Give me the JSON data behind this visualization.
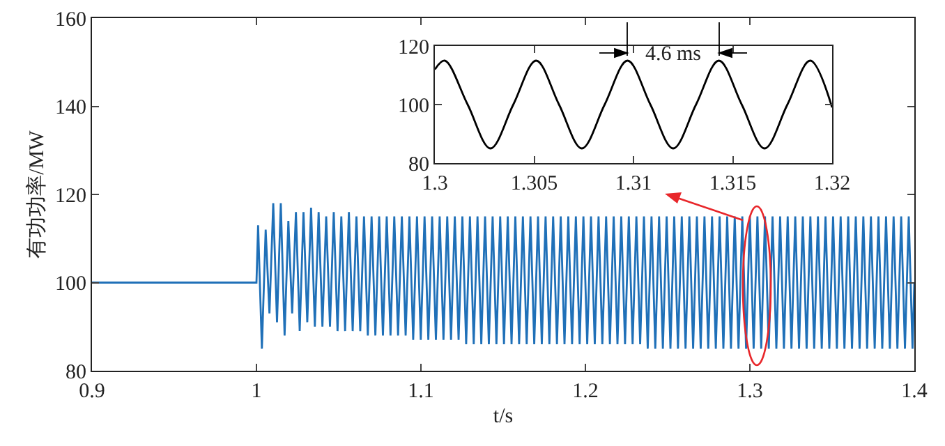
{
  "chart_data": [
    {
      "type": "line",
      "xlabel": "t/s",
      "ylabel": "有功功率/MW",
      "color": "#1f70b8",
      "xlim": [
        0.9,
        1.4
      ],
      "xticks": [
        0.9,
        1,
        1.1,
        1.2,
        1.3,
        1.4
      ],
      "ylim": [
        80,
        160
      ],
      "yticks": [
        80,
        100,
        120,
        140,
        160
      ],
      "x": [
        0.9,
        1.0,
        1.001,
        1.0033,
        1.0056,
        1.0079,
        1.0102,
        1.0125,
        1.0148,
        1.0171,
        1.0194,
        1.0217,
        1.024,
        1.0263,
        1.0286,
        1.0309,
        1.0332,
        1.0355,
        1.0378,
        1.0401,
        1.0424,
        1.0447,
        1.047,
        1.0493,
        1.0516,
        1.0539,
        1.0562,
        1.0585,
        1.0608,
        1.0631,
        1.0654,
        1.0677,
        1.07,
        1.0723,
        1.0746,
        1.0769,
        1.0792,
        1.0815,
        1.0838,
        1.0861,
        1.0884,
        1.0907,
        1.093,
        1.0953,
        1.0976,
        1.0999,
        1.1022,
        1.1045,
        1.1068,
        1.1091,
        1.1114,
        1.1137,
        1.116,
        1.1183,
        1.1206,
        1.1229,
        1.1252,
        1.1275,
        1.1298,
        1.1321,
        1.1344,
        1.1367,
        1.139,
        1.1413,
        1.1436,
        1.1459,
        1.1482,
        1.1505,
        1.1528,
        1.1551,
        1.1574,
        1.1597,
        1.162,
        1.1643,
        1.1666,
        1.1689,
        1.1712,
        1.1735,
        1.1758,
        1.1781,
        1.1804,
        1.1827,
        1.185,
        1.1873,
        1.1896,
        1.1919,
        1.1942,
        1.1965,
        1.1988,
        1.2011,
        1.2034,
        1.2057,
        1.208,
        1.2103,
        1.2126,
        1.2149,
        1.2172,
        1.2195,
        1.2218,
        1.2241,
        1.2264,
        1.2287,
        1.231,
        1.2333,
        1.2356,
        1.2379,
        1.2402,
        1.2425,
        1.2448,
        1.2471,
        1.2494,
        1.2517,
        1.254,
        1.2563,
        1.2586,
        1.2609,
        1.2632,
        1.2655,
        1.2678,
        1.2701,
        1.2724,
        1.2747,
        1.277,
        1.2793,
        1.2816,
        1.2839,
        1.2862,
        1.2885,
        1.2908,
        1.2931,
        1.2954,
        1.2977,
        1.3,
        1.3023,
        1.3046,
        1.3069,
        1.3092,
        1.3115,
        1.3138,
        1.3161,
        1.3184,
        1.3207,
        1.323,
        1.3253,
        1.3276,
        1.3299,
        1.3322,
        1.3345,
        1.3368,
        1.3391,
        1.3414,
        1.3437,
        1.346,
        1.3483,
        1.3506,
        1.3529,
        1.3552,
        1.3575,
        1.3598,
        1.3621,
        1.3644,
        1.3667,
        1.369,
        1.3713,
        1.3736,
        1.3759,
        1.3782,
        1.3805,
        1.3828,
        1.3851,
        1.3874,
        1.3897,
        1.392,
        1.3943,
        1.3966,
        1.3989,
        1.4
      ],
      "values": [
        100,
        100,
        113,
        85,
        112,
        93,
        118,
        91,
        118,
        88,
        114,
        93,
        116,
        89,
        116,
        91,
        117,
        90,
        116,
        90,
        115,
        90,
        116,
        89,
        115,
        89,
        116,
        89,
        115,
        89,
        115,
        88,
        115,
        88,
        115,
        88,
        115,
        88,
        115,
        88,
        115,
        88,
        115,
        87,
        115,
        87,
        115,
        87,
        115,
        87,
        115,
        87,
        115,
        87,
        115,
        87,
        115,
        86,
        115,
        86,
        115,
        86,
        115,
        86,
        115,
        86,
        115,
        86,
        115,
        86,
        115,
        86,
        115,
        86,
        115,
        86,
        115,
        86,
        115,
        86,
        115,
        86,
        115,
        86,
        115,
        86,
        115,
        86,
        115,
        86,
        115,
        86,
        115,
        86,
        115,
        86,
        115,
        86,
        115,
        86,
        115,
        86,
        115,
        86,
        115,
        85,
        115,
        85,
        115,
        85,
        115,
        85,
        115,
        85,
        115,
        85,
        115,
        85,
        115,
        85,
        115,
        85,
        115,
        85,
        115,
        85,
        115,
        85,
        115,
        85,
        115,
        85,
        115,
        85,
        115,
        85,
        115,
        85,
        115,
        85,
        115,
        85,
        115,
        85,
        115,
        85,
        115,
        85,
        115,
        85,
        115,
        85,
        115,
        85,
        115,
        85,
        115,
        85,
        115,
        85,
        115,
        85,
        115,
        85,
        115,
        85,
        115,
        85,
        115,
        85,
        115,
        85,
        115,
        85,
        115,
        85,
        100
      ]
    },
    {
      "type": "line",
      "color": "#000000",
      "xlim": [
        1.3,
        1.32
      ],
      "xticks": [
        1.3,
        1.305,
        1.31,
        1.315,
        1.32
      ],
      "ylim": [
        80,
        120
      ],
      "yticks": [
        80,
        100,
        120
      ],
      "x": [
        1.3,
        1.3005,
        1.30165,
        1.3028,
        1.30395,
        1.3051,
        1.30625,
        1.3074,
        1.30855,
        1.3097,
        1.31085,
        1.312,
        1.31315,
        1.3143,
        1.31545,
        1.3166,
        1.31775,
        1.3189,
        1.32
      ],
      "values": [
        112,
        115,
        100,
        85,
        100,
        115,
        100,
        85,
        100,
        115,
        100,
        85,
        100,
        115,
        100,
        85,
        100,
        115,
        99
      ],
      "annotations": [
        "4.6 ms"
      ]
    }
  ]
}
